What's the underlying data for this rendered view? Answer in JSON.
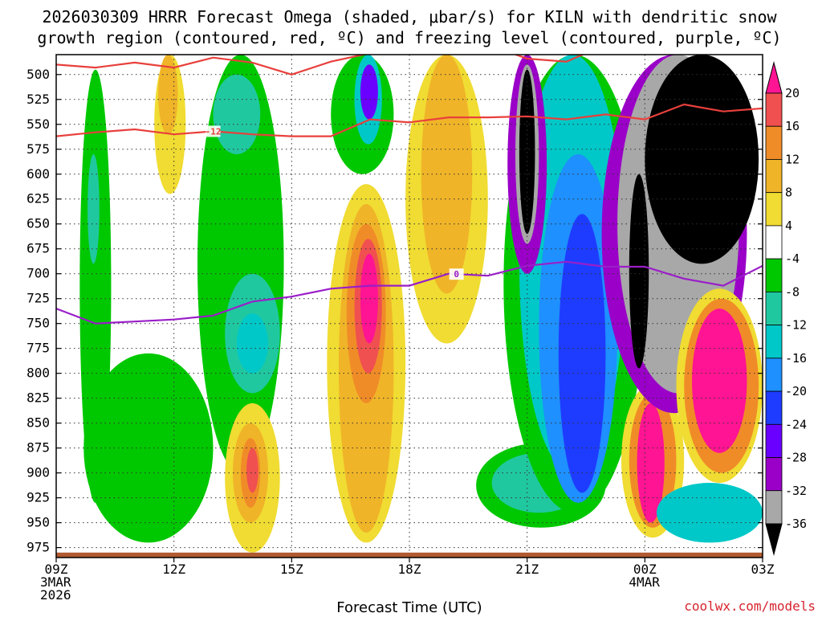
{
  "chart_data": {
    "type": "heatmap",
    "title_line1": "2026030309 HRRR Forecast Omega (shaded, μbar/s) for KILN with dendritic snow",
    "title_line2": "growth region (contoured, red, ºC) and freezing level (contoured, purple, ºC)",
    "xlabel": "Forecast Time (UTC)",
    "credit": "coolwx.com/models",
    "x_hours": [
      9,
      12,
      15,
      18,
      21,
      24,
      27
    ],
    "x_ticks": [
      {
        "hour": 9,
        "label": "09Z",
        "sub1": "3MAR",
        "sub2": "2026"
      },
      {
        "hour": 12,
        "label": "12Z",
        "sub1": "",
        "sub2": ""
      },
      {
        "hour": 15,
        "label": "15Z",
        "sub1": "",
        "sub2": ""
      },
      {
        "hour": 18,
        "label": "18Z",
        "sub1": "",
        "sub2": ""
      },
      {
        "hour": 21,
        "label": "21Z",
        "sub1": "",
        "sub2": ""
      },
      {
        "hour": 24,
        "label": "00Z",
        "sub1": "4MAR",
        "sub2": ""
      },
      {
        "hour": 27,
        "label": "03Z",
        "sub1": "",
        "sub2": ""
      }
    ],
    "xlim": [
      9,
      27
    ],
    "ylim": [
      480,
      985
    ],
    "y_ticks": [
      500,
      525,
      550,
      575,
      600,
      625,
      650,
      675,
      700,
      725,
      750,
      775,
      800,
      825,
      850,
      875,
      900,
      925,
      950,
      975
    ],
    "grid": true,
    "colorbar": {
      "levels": [
        -36,
        -32,
        -28,
        -24,
        -20,
        -16,
        -12,
        -8,
        -4,
        4,
        8,
        12,
        16,
        20
      ],
      "labels": [
        "20",
        "16",
        "12",
        "8",
        "4",
        "-4",
        "-8",
        "-12",
        "-16",
        "-20",
        "-24",
        "-28",
        "-32",
        "-36"
      ],
      "colors_low_to_high": [
        "#000000",
        "#a8a8a8",
        "#9a00c8",
        "#6a00ff",
        "#1e3cff",
        "#1e90ff",
        "#00c8c8",
        "#20c8a0",
        "#00c800",
        "#ffffff",
        "#f0dc32",
        "#f0b428",
        "#f08c28",
        "#f05050",
        "#ff1493"
      ]
    },
    "omega_regions": [
      {
        "color": "#00c800",
        "hour_range": [
          9.6,
          10.4
        ],
        "p_range": [
          495,
          930
        ]
      },
      {
        "color": "#20c8a0",
        "hour_range": [
          9.8,
          10.1
        ],
        "p_range": [
          580,
          690
        ]
      },
      {
        "color": "#00c800",
        "hour_range": [
          9.7,
          13.0
        ],
        "p_range": [
          780,
          970
        ]
      },
      {
        "color": "#f0dc32",
        "hour_range": [
          11.5,
          12.3
        ],
        "p_range": [
          480,
          620
        ]
      },
      {
        "color": "#f0b428",
        "hour_range": [
          11.6,
          12.1
        ],
        "p_range": [
          480,
          560
        ]
      },
      {
        "color": "#00c800",
        "hour_range": [
          12.6,
          14.8
        ],
        "p_range": [
          480,
          900
        ]
      },
      {
        "color": "#20c8a0",
        "hour_range": [
          13.0,
          14.2
        ],
        "p_range": [
          500,
          580
        ]
      },
      {
        "color": "#20c8a0",
        "hour_range": [
          13.3,
          14.7
        ],
        "p_range": [
          700,
          820
        ]
      },
      {
        "color": "#00c8c8",
        "hour_range": [
          13.6,
          14.4
        ],
        "p_range": [
          740,
          800
        ]
      },
      {
        "color": "#f0dc32",
        "hour_range": [
          13.3,
          14.7
        ],
        "p_range": [
          830,
          980
        ]
      },
      {
        "color": "#f0b428",
        "hour_range": [
          13.5,
          14.4
        ],
        "p_range": [
          850,
          950
        ]
      },
      {
        "color": "#f08c28",
        "hour_range": [
          13.7,
          14.2
        ],
        "p_range": [
          865,
          935
        ]
      },
      {
        "color": "#f05050",
        "hour_range": [
          13.85,
          14.15
        ],
        "p_range": [
          875,
          920
        ]
      },
      {
        "color": "#00c800",
        "hour_range": [
          16.0,
          17.6
        ],
        "p_range": [
          480,
          600
        ]
      },
      {
        "color": "#00c8c8",
        "hour_range": [
          16.6,
          17.3
        ],
        "p_range": [
          480,
          570
        ]
      },
      {
        "color": "#6a00ff",
        "hour_range": [
          16.75,
          17.2
        ],
        "p_range": [
          490,
          545
        ]
      },
      {
        "color": "#f0dc32",
        "hour_range": [
          15.9,
          17.9
        ],
        "p_range": [
          610,
          970
        ]
      },
      {
        "color": "#f0b428",
        "hour_range": [
          16.2,
          17.6
        ],
        "p_range": [
          630,
          960
        ]
      },
      {
        "color": "#f08c28",
        "hour_range": [
          16.4,
          17.4
        ],
        "p_range": [
          650,
          830
        ]
      },
      {
        "color": "#f05050",
        "hour_range": [
          16.6,
          17.3
        ],
        "p_range": [
          665,
          800
        ]
      },
      {
        "color": "#ff1493",
        "hour_range": [
          16.75,
          17.2
        ],
        "p_range": [
          680,
          770
        ]
      },
      {
        "color": "#f0dc32",
        "hour_range": [
          17.9,
          20.0
        ],
        "p_range": [
          480,
          770
        ]
      },
      {
        "color": "#f0b428",
        "hour_range": [
          18.3,
          19.6
        ],
        "p_range": [
          480,
          720
        ]
      },
      {
        "color": "#00c800",
        "hour_range": [
          19.7,
          23.0
        ],
        "p_range": [
          870,
          955
        ]
      },
      {
        "color": "#20c8a0",
        "hour_range": [
          20.1,
          22.5
        ],
        "p_range": [
          880,
          940
        ]
      },
      {
        "color": "#00c800",
        "hour_range": [
          20.4,
          24.0
        ],
        "p_range": [
          480,
          940
        ]
      },
      {
        "color": "#00c8c8",
        "hour_range": [
          20.8,
          23.5
        ],
        "p_range": [
          480,
          900
        ]
      },
      {
        "color": "#1e90ff",
        "hour_range": [
          21.3,
          23.3
        ],
        "p_range": [
          580,
          930
        ]
      },
      {
        "color": "#1e3cff",
        "hour_range": [
          21.8,
          23.0
        ],
        "p_range": [
          640,
          920
        ]
      },
      {
        "color": "#9a00c8",
        "hour_range": [
          20.5,
          21.5
        ],
        "p_range": [
          480,
          700
        ]
      },
      {
        "color": "#a8a8a8",
        "hour_range": [
          20.7,
          21.3
        ],
        "p_range": [
          490,
          670
        ]
      },
      {
        "color": "#000000",
        "hour_range": [
          20.8,
          21.2
        ],
        "p_range": [
          495,
          660
        ]
      },
      {
        "color": "#f0dc32",
        "hour_range": [
          23.4,
          25.0
        ],
        "p_range": [
          810,
          965
        ]
      },
      {
        "color": "#f08c28",
        "hour_range": [
          23.6,
          24.8
        ],
        "p_range": [
          820,
          955
        ]
      },
      {
        "color": "#ff1493",
        "hour_range": [
          23.8,
          24.5
        ],
        "p_range": [
          830,
          950
        ]
      },
      {
        "color": "#9a00c8",
        "hour_range": [
          22.9,
          26.6
        ],
        "p_range": [
          480,
          840
        ]
      },
      {
        "color": "#a8a8a8",
        "hour_range": [
          23.3,
          26.4
        ],
        "p_range": [
          480,
          820
        ]
      },
      {
        "color": "#000000",
        "hour_range": [
          24.0,
          26.9
        ],
        "p_range": [
          480,
          690
        ]
      },
      {
        "color": "#000000",
        "hour_range": [
          23.6,
          24.1
        ],
        "p_range": [
          600,
          795
        ]
      },
      {
        "color": "#00c8c8",
        "hour_range": [
          24.3,
          27.0
        ],
        "p_range": [
          910,
          970
        ]
      },
      {
        "color": "#f0dc32",
        "hour_range": [
          24.8,
          27.0
        ],
        "p_range": [
          715,
          910
        ]
      },
      {
        "color": "#f08c28",
        "hour_range": [
          25.0,
          26.9
        ],
        "p_range": [
          725,
          900
        ]
      },
      {
        "color": "#ff1493",
        "hour_range": [
          25.2,
          26.6
        ],
        "p_range": [
          735,
          880
        ]
      }
    ],
    "dgz_contour": {
      "color": "#e8403c",
      "label": "-12",
      "label_hour": 13.0,
      "upper": [
        [
          9.0,
          490
        ],
        [
          10.0,
          493
        ],
        [
          11.0,
          488
        ],
        [
          12.0,
          493
        ],
        [
          13.0,
          483
        ],
        [
          14.0,
          488
        ],
        [
          15.0,
          500
        ],
        [
          16.0,
          487
        ],
        [
          18.0,
          470
        ],
        [
          20.0,
          470
        ],
        [
          21.0,
          484
        ],
        [
          22.0,
          487
        ],
        [
          23.0,
          470
        ]
      ],
      "lower": [
        [
          9.0,
          562
        ],
        [
          10.0,
          558
        ],
        [
          11.0,
          555
        ],
        [
          12.0,
          560
        ],
        [
          13.0,
          557
        ],
        [
          14.0,
          560
        ],
        [
          15.0,
          562
        ],
        [
          16.0,
          562
        ],
        [
          17.0,
          545
        ],
        [
          18.0,
          548
        ],
        [
          19.0,
          543
        ],
        [
          20.0,
          543
        ],
        [
          21.0,
          542
        ],
        [
          22.0,
          545
        ],
        [
          23.0,
          540
        ],
        [
          24.0,
          545
        ],
        [
          25.0,
          530
        ],
        [
          26.0,
          537
        ],
        [
          27.0,
          534
        ]
      ]
    },
    "freezing_level": {
      "color": "#9a1ec8",
      "label": "0",
      "label_hour": 19.2,
      "points": [
        [
          9.0,
          735
        ],
        [
          10.0,
          750
        ],
        [
          11.0,
          748
        ],
        [
          12.0,
          746
        ],
        [
          13.0,
          742
        ],
        [
          14.0,
          728
        ],
        [
          15.0,
          723
        ],
        [
          16.0,
          715
        ],
        [
          17.0,
          712
        ],
        [
          18.0,
          712
        ],
        [
          19.0,
          700
        ],
        [
          20.0,
          702
        ],
        [
          21.0,
          692
        ],
        [
          22.0,
          688
        ],
        [
          23.0,
          693
        ],
        [
          24.0,
          693
        ],
        [
          25.0,
          705
        ],
        [
          26.0,
          712
        ],
        [
          27.0,
          692
        ]
      ]
    },
    "terrain": {
      "color": "#b05a30",
      "p_top": 980
    }
  }
}
